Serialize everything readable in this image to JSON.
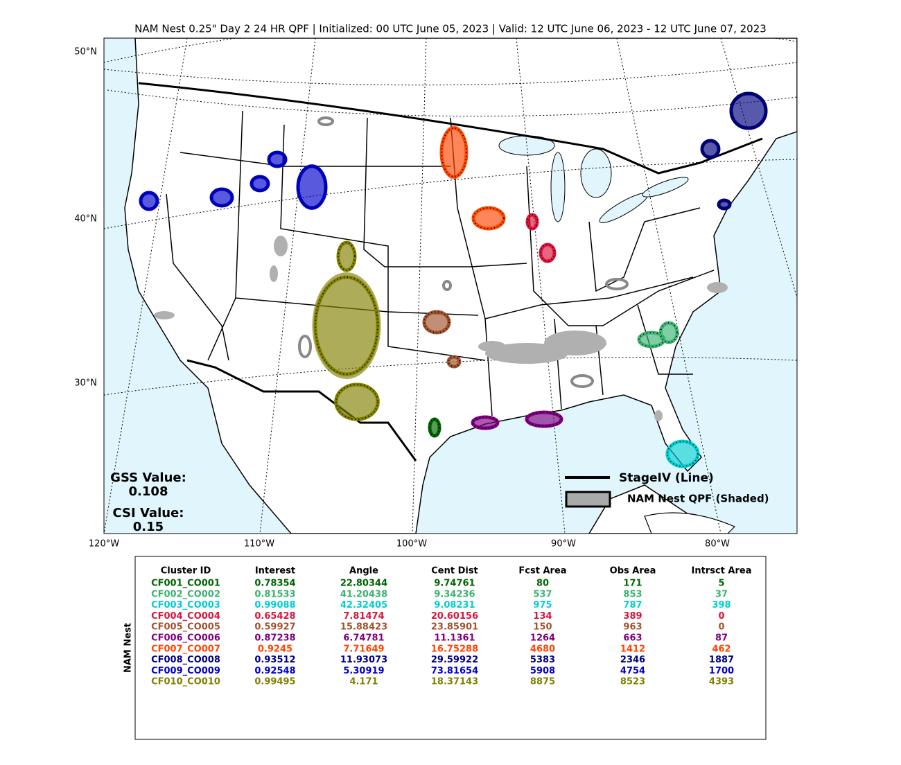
{
  "title": "NAM Nest 0.25\" Day 2 24 HR QPF | Initialized: 00 UTC June 05, 2023 | Valid: 12 UTC June 06, 2023 - 12 UTC June 07, 2023",
  "map": {
    "lat_labels": [
      "50°N",
      "40°N",
      "30°N"
    ],
    "lon_labels": [
      "120°W",
      "110°W",
      "100°W",
      "90°W",
      "80°W"
    ]
  },
  "scores": {
    "gss_label": "GSS Value:",
    "gss_value": "0.108",
    "csi_label": "CSI Value:",
    "csi_value": "0.15"
  },
  "legend": {
    "line": "StageIV (Line)",
    "shaded": "NAM Nest QPF (Shaded)"
  },
  "table": {
    "side_label": "NAM Nest",
    "headers": [
      "Cluster ID",
      "Interest",
      "Angle",
      "Cent Dist",
      "Fcst Area",
      "Obs Area",
      "Intrsct Area"
    ],
    "rows": [
      {
        "color": "#006400",
        "cells": [
          "CF001_CO001",
          "0.78354",
          "22.80344",
          "9.74761",
          "80",
          "171",
          "5"
        ]
      },
      {
        "color": "#3cb371",
        "cells": [
          "CF002_CO002",
          "0.81533",
          "41.20438",
          "9.34236",
          "537",
          "853",
          "37"
        ]
      },
      {
        "color": "#00ced1",
        "cells": [
          "CF003_CO003",
          "0.99088",
          "42.32405",
          "9.08231",
          "975",
          "787",
          "398"
        ]
      },
      {
        "color": "#dc143c",
        "cells": [
          "CF004_CO004",
          "0.65428",
          "7.81474",
          "20.60156",
          "134",
          "389",
          "0"
        ]
      },
      {
        "color": "#a0522d",
        "cells": [
          "CF005_CO005",
          "0.59927",
          "15.88423",
          "23.85901",
          "150",
          "963",
          "0"
        ]
      },
      {
        "color": "#800080",
        "cells": [
          "CF006_CO006",
          "0.87238",
          "6.74781",
          "11.1361",
          "1264",
          "663",
          "87"
        ]
      },
      {
        "color": "#ff4500",
        "cells": [
          "CF007_CO007",
          "0.9245",
          "7.71649",
          "16.75288",
          "4680",
          "1412",
          "462"
        ]
      },
      {
        "color": "#000080",
        "cells": [
          "CF008_CO008",
          "0.93512",
          "11.93073",
          "29.59922",
          "5383",
          "2346",
          "1887"
        ]
      },
      {
        "color": "#0000cd",
        "cells": [
          "CF009_CO009",
          "0.92548",
          "5.30919",
          "73.81654",
          "5908",
          "4754",
          "1700"
        ]
      },
      {
        "color": "#808000",
        "cells": [
          "CF010_CO010",
          "0.99495",
          "4.171",
          "18.37143",
          "8875",
          "8523",
          "4393"
        ]
      }
    ]
  }
}
